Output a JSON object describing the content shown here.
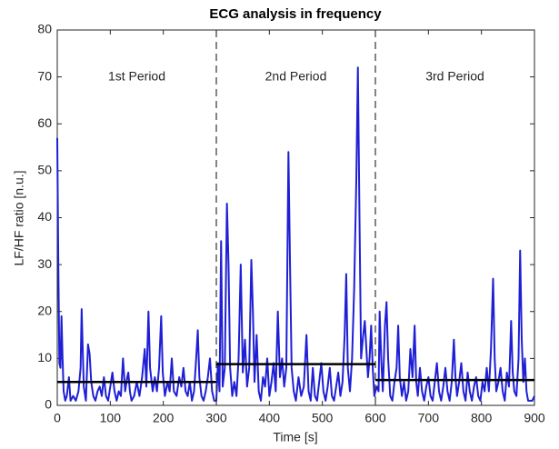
{
  "chart_data": {
    "type": "line",
    "title": "ECG analysis in frequency",
    "x_label": "Time [s]",
    "y_label": "LF/HF ratio [n.u.]",
    "x": [
      0,
      2,
      4,
      6,
      8,
      10,
      12,
      15,
      18,
      22,
      25,
      30,
      35,
      40,
      44,
      46,
      48,
      50,
      54,
      58,
      61,
      64,
      68,
      72,
      76,
      80,
      84,
      88,
      92,
      96,
      100,
      104,
      108,
      112,
      116,
      120,
      124,
      128,
      132,
      134,
      137,
      140,
      145,
      150,
      155,
      160,
      165,
      168,
      172,
      175,
      180,
      184,
      188,
      192,
      196,
      199,
      203,
      208,
      212,
      216,
      220,
      225,
      230,
      234,
      238,
      242,
      246,
      250,
      254,
      258,
      262,
      265,
      268,
      272,
      276,
      280,
      284,
      288,
      292,
      296,
      300,
      303,
      306,
      309,
      312,
      316,
      320,
      323,
      326,
      330,
      334,
      338,
      342,
      346,
      350,
      354,
      358,
      362,
      366,
      369,
      372,
      376,
      380,
      384,
      388,
      392,
      396,
      400,
      404,
      408,
      412,
      416,
      420,
      424,
      428,
      432,
      436,
      439,
      442,
      446,
      450,
      455,
      460,
      465,
      470,
      474,
      478,
      482,
      486,
      490,
      494,
      498,
      502,
      506,
      510,
      514,
      518,
      522,
      526,
      530,
      534,
      538,
      542,
      545,
      548,
      552,
      556,
      560,
      564,
      567,
      570,
      573,
      577,
      580,
      583,
      586,
      589,
      592,
      595,
      598,
      600,
      603,
      606,
      608,
      611,
      614,
      618,
      621,
      624,
      628,
      632,
      636,
      640,
      643,
      646,
      650,
      654,
      658,
      662,
      666,
      670,
      674,
      677,
      680,
      684,
      688,
      692,
      696,
      700,
      704,
      708,
      712,
      716,
      720,
      724,
      728,
      732,
      736,
      740,
      744,
      748,
      751,
      754,
      758,
      762,
      766,
      770,
      774,
      778,
      782,
      786,
      790,
      794,
      798,
      802,
      806,
      810,
      814,
      818,
      822,
      825,
      828,
      832,
      836,
      840,
      844,
      848,
      852,
      856,
      859,
      862,
      866,
      870,
      873,
      876,
      879,
      882,
      885,
      888,
      892,
      896,
      900
    ],
    "series": [
      {
        "color": "#1f1fd6",
        "values": [
          57,
          30,
          9,
          8,
          19,
          10,
          3,
          1,
          2,
          6,
          1,
          2,
          1,
          3,
          8,
          20.5,
          12,
          4,
          1,
          13,
          11,
          5,
          2,
          1,
          3,
          4,
          2,
          6,
          2,
          1,
          4,
          7,
          3,
          1,
          3,
          2,
          10,
          3,
          6,
          7,
          3,
          1,
          2,
          5,
          2,
          6,
          12,
          4,
          20,
          8,
          3,
          6,
          3,
          8,
          19,
          7,
          2,
          5,
          3,
          10,
          3,
          2,
          6,
          4,
          8,
          3,
          2,
          5,
          1,
          3,
          10,
          16,
          6,
          2,
          1,
          3,
          6,
          10,
          3,
          1,
          1,
          9,
          3,
          35,
          4,
          8,
          43,
          30,
          8,
          2,
          5,
          2,
          10,
          30,
          7,
          14,
          4,
          8,
          31,
          20,
          5,
          15,
          3,
          1,
          6,
          4,
          10,
          2,
          5,
          9,
          3,
          20,
          6,
          10,
          4,
          8,
          54,
          30,
          8,
          3,
          1,
          6,
          2,
          4,
          15,
          3,
          1,
          8,
          2,
          1,
          5,
          9,
          3,
          1,
          4,
          8,
          2,
          1,
          4,
          7,
          2,
          5,
          15,
          28,
          8,
          3,
          10,
          25,
          48,
          72,
          40,
          10,
          15,
          18,
          12,
          6,
          10,
          17,
          8,
          2,
          3,
          4,
          3,
          20,
          10,
          3,
          17,
          22,
          10,
          2,
          1,
          5,
          8,
          17,
          6,
          2,
          5,
          1,
          3,
          12,
          6,
          17,
          5,
          2,
          8,
          3,
          1,
          4,
          6,
          2,
          1,
          5,
          9,
          3,
          1,
          4,
          8,
          3,
          1,
          5,
          14,
          6,
          2,
          5,
          9,
          3,
          1,
          7,
          3,
          1,
          4,
          6,
          2,
          1,
          5,
          3,
          8,
          3,
          12,
          27,
          10,
          3,
          5,
          8,
          3,
          1,
          7,
          4,
          18,
          7,
          3,
          2,
          10,
          33,
          14,
          5,
          10,
          3,
          1,
          1,
          1,
          2
        ]
      }
    ],
    "mean_lines": [
      {
        "x": [
          0,
          300
        ],
        "value": 5,
        "color": "#000000"
      },
      {
        "x": [
          300,
          600
        ],
        "value": 8.8,
        "color": "#000000"
      },
      {
        "x": [
          600,
          900
        ],
        "value": 5.4,
        "color": "#000000"
      }
    ],
    "dividers": [
      300,
      600
    ],
    "annotations": [
      {
        "text": "1st Period",
        "x": 150,
        "y": 70
      },
      {
        "text": "2nd Period",
        "x": 450,
        "y": 70
      },
      {
        "text": "3rd Period",
        "x": 750,
        "y": 70
      }
    ],
    "xlim": [
      0,
      900
    ],
    "xticks": [
      0,
      100,
      200,
      300,
      400,
      500,
      600,
      700,
      800,
      900
    ],
    "ylim": [
      0,
      80
    ],
    "yticks": [
      0,
      10,
      20,
      30,
      40,
      50,
      60,
      70,
      80
    ],
    "grid": false
  }
}
